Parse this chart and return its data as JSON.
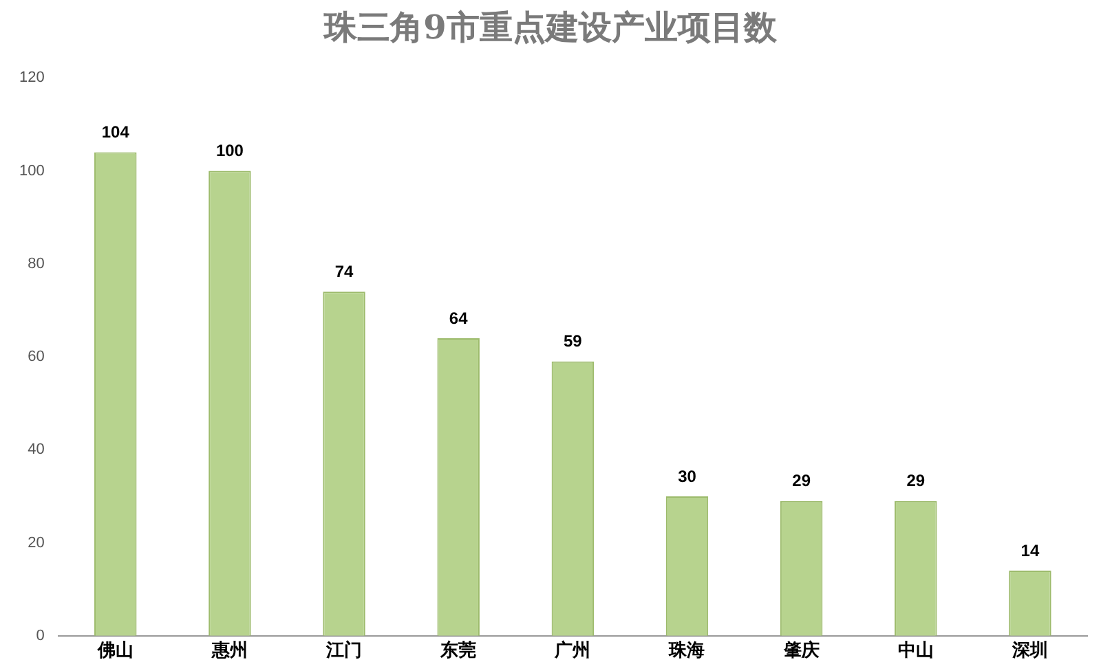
{
  "chart_data": {
    "type": "bar",
    "title": "珠三角9市重点建设产业项目数",
    "categories": [
      "佛山",
      "惠州",
      "江门",
      "东莞",
      "广州",
      "珠海",
      "肇庆",
      "中山",
      "深圳"
    ],
    "values": [
      104,
      100,
      74,
      64,
      59,
      30,
      29,
      29,
      14
    ],
    "color": "#b7d38e",
    "ylim": [
      0,
      120
    ],
    "yticks": [
      0,
      20,
      40,
      60,
      80,
      100,
      120
    ],
    "grid": false,
    "data_labels": true
  }
}
